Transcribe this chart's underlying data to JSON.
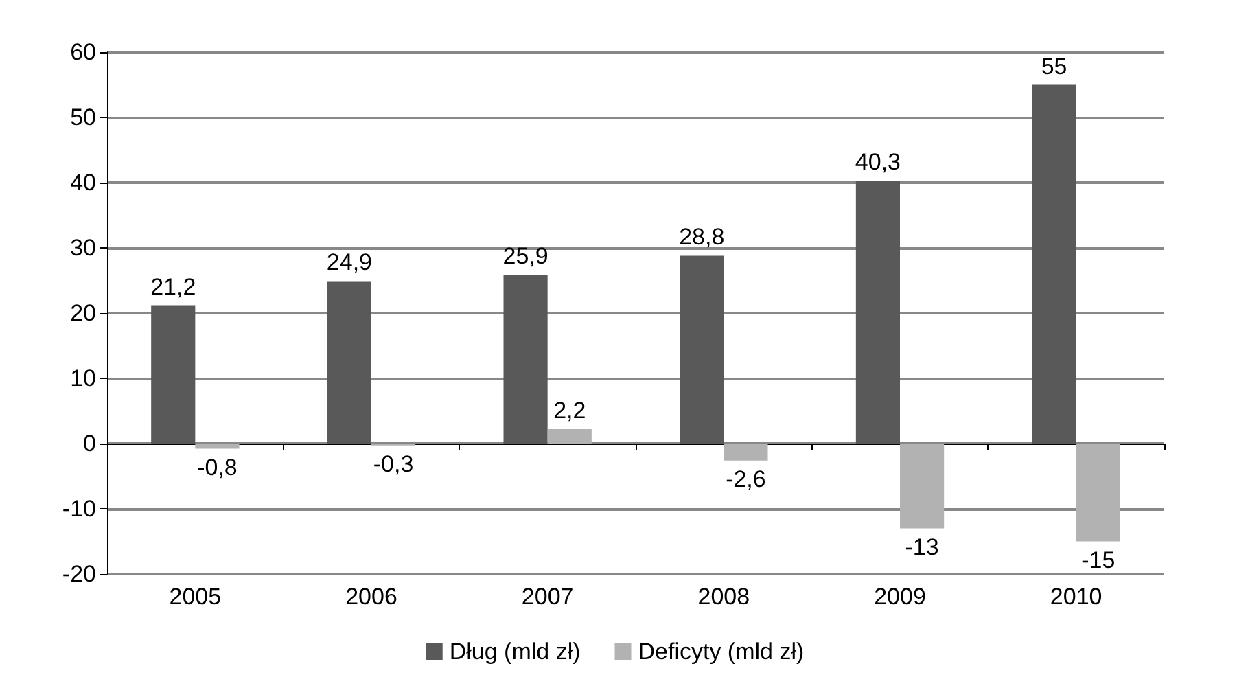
{
  "chart_data": {
    "type": "bar",
    "categories": [
      "2005",
      "2006",
      "2007",
      "2008",
      "2009",
      "2010"
    ],
    "series": [
      {
        "name": "Dług (mld zł)",
        "color": "#595959",
        "values": [
          21.2,
          24.9,
          25.9,
          28.8,
          40.3,
          55
        ],
        "value_labels": [
          "21,2",
          "24,9",
          "25,9",
          "28,8",
          "40,3",
          "55"
        ]
      },
      {
        "name": "Deficyty (mld zł)",
        "color": "#b2b2b2",
        "values": [
          -0.8,
          -0.3,
          2.2,
          -2.6,
          -13,
          -15
        ],
        "value_labels": [
          "-0,8",
          "-0,3",
          "2,2",
          "-2,6",
          "-13",
          "-15"
        ]
      }
    ],
    "ylim": [
      -20,
      60
    ],
    "yticks": [
      -20,
      -10,
      0,
      10,
      20,
      30,
      40,
      50,
      60
    ],
    "grid": "y",
    "legend": "bottom"
  }
}
